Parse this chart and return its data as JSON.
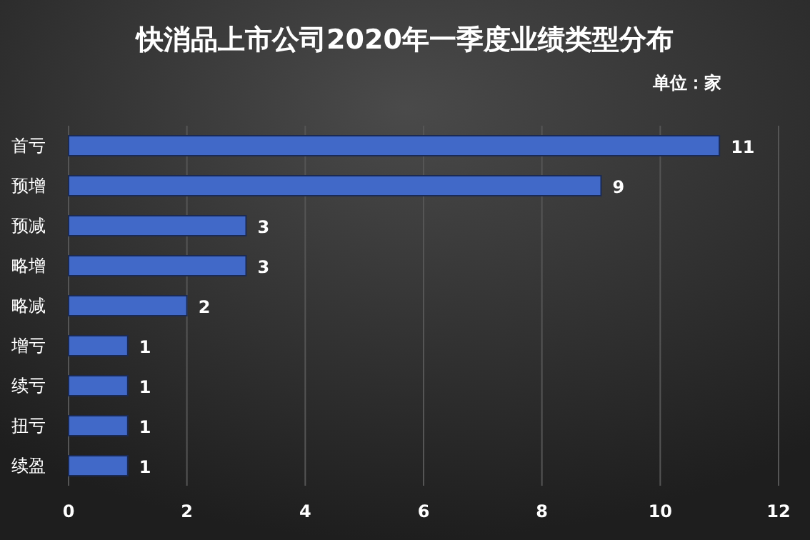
{
  "chart_data": {
    "type": "bar",
    "orientation": "horizontal",
    "title": "快消品上市公司2020年一季度业绩类型分布",
    "annotations": [
      "单位：家"
    ],
    "categories": [
      "首亏",
      "预增",
      "预减",
      "略增",
      "略减",
      "增亏",
      "续亏",
      "扭亏",
      "续盈"
    ],
    "values": [
      11,
      9,
      3,
      3,
      2,
      1,
      1,
      1,
      1
    ],
    "color": "#4169c8",
    "xlim": [
      0,
      12
    ],
    "xticks": [
      0,
      2,
      4,
      6,
      8,
      10,
      12
    ],
    "grid": "x",
    "data_labels": true
  }
}
